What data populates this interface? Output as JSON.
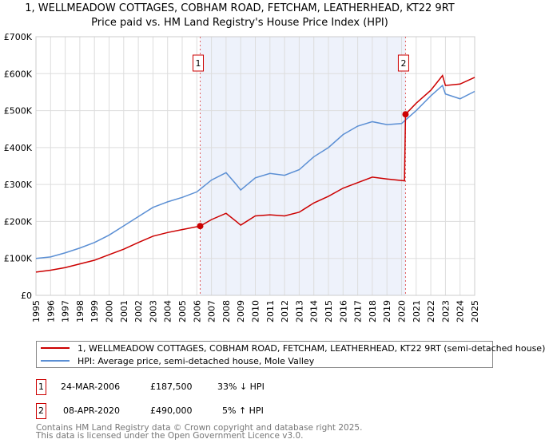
{
  "title": "1, WELLMEADOW COTTAGES, COBHAM ROAD, FETCHAM, LEATHERHEAD, KT22 9RT",
  "subtitle": "Price paid vs. HM Land Registry's House Price Index (HPI)",
  "chart_data": {
    "type": "line",
    "title": "1, WELLMEADOW COTTAGES, COBHAM ROAD, FETCHAM, LEATHERHEAD, KT22 9RT",
    "xlim": [
      1995,
      2025
    ],
    "ylim": [
      0,
      700000
    ],
    "x_ticks": [
      "1995",
      "1996",
      "1997",
      "1998",
      "1999",
      "2000",
      "2001",
      "2002",
      "2003",
      "2004",
      "2005",
      "2006",
      "2007",
      "2008",
      "2009",
      "2010",
      "2011",
      "2012",
      "2013",
      "2014",
      "2015",
      "2016",
      "2017",
      "2018",
      "2019",
      "2020",
      "2021",
      "2022",
      "2023",
      "2024",
      "2025"
    ],
    "y_ticks": [
      {
        "v": 0,
        "label": "£0"
      },
      {
        "v": 100000,
        "label": "£100K"
      },
      {
        "v": 200000,
        "label": "£200K"
      },
      {
        "v": 300000,
        "label": "£300K"
      },
      {
        "v": 400000,
        "label": "£400K"
      },
      {
        "v": 500000,
        "label": "£500K"
      },
      {
        "v": 600000,
        "label": "£600K"
      },
      {
        "v": 700000,
        "label": "£700K"
      }
    ],
    "grid": true,
    "series": [
      {
        "name": "1, WELLMEADOW COTTAGES, COBHAM ROAD, FETCHAM, LEATHERHEAD, KT22 9RT (semi-detached house)",
        "color": "#cc0000",
        "x": [
          1995,
          1996,
          1997,
          1998,
          1999,
          2000,
          2001,
          2002,
          2003,
          2004,
          2005,
          2006.23,
          2007,
          2008,
          2008.7,
          2009,
          2010,
          2011,
          2012,
          2013,
          2014,
          2015,
          2016,
          2017,
          2018,
          2019,
          2020.2,
          2020.27,
          2021,
          2022,
          2022.8,
          2023,
          2024,
          2025
        ],
        "y": [
          63000,
          68000,
          75000,
          85000,
          95000,
          110000,
          125000,
          143000,
          160000,
          170000,
          178000,
          187500,
          205000,
          222000,
          200000,
          190000,
          215000,
          218000,
          215000,
          225000,
          250000,
          268000,
          290000,
          305000,
          320000,
          315000,
          310000,
          490000,
          520000,
          555000,
          595000,
          568000,
          572000,
          590000
        ]
      },
      {
        "name": "HPI: Average price, semi-detached house, Mole Valley",
        "color": "#5b8fd4",
        "x": [
          1995,
          1996,
          1997,
          1998,
          1999,
          2000,
          2001,
          2002,
          2003,
          2004,
          2005,
          2006,
          2007,
          2008,
          2008.7,
          2009,
          2010,
          2011,
          2012,
          2013,
          2014,
          2015,
          2016,
          2017,
          2018,
          2019,
          2020,
          2021,
          2022,
          2022.8,
          2023,
          2024,
          2025
        ],
        "y": [
          100000,
          104000,
          115000,
          128000,
          143000,
          163000,
          188000,
          213000,
          238000,
          253000,
          265000,
          280000,
          312000,
          332000,
          300000,
          285000,
          318000,
          330000,
          325000,
          340000,
          375000,
          400000,
          435000,
          458000,
          470000,
          462000,
          465000,
          500000,
          540000,
          568000,
          545000,
          532000,
          552000
        ]
      }
    ],
    "sales": [
      {
        "id": "1",
        "x": 2006.23,
        "y": 187500
      },
      {
        "id": "2",
        "x": 2020.27,
        "y": 490000
      }
    ],
    "shaded_range": [
      2006.23,
      2020.27
    ]
  },
  "legend": {
    "red": "1, WELLMEADOW COTTAGES, COBHAM ROAD, FETCHAM, LEATHERHEAD, KT22 9RT (semi-detached house)",
    "blue": "HPI: Average price, semi-detached house, Mole Valley"
  },
  "transactions": [
    {
      "id": "1",
      "date": "24-MAR-2006",
      "price": "£187,500",
      "hpi": "33% ↓ HPI"
    },
    {
      "id": "2",
      "date": "08-APR-2020",
      "price": "£490,000",
      "hpi": "5% ↑ HPI"
    }
  ],
  "footer": [
    "Contains HM Land Registry data © Crown copyright and database right 2025.",
    "This data is licensed under the Open Government Licence v3.0."
  ]
}
